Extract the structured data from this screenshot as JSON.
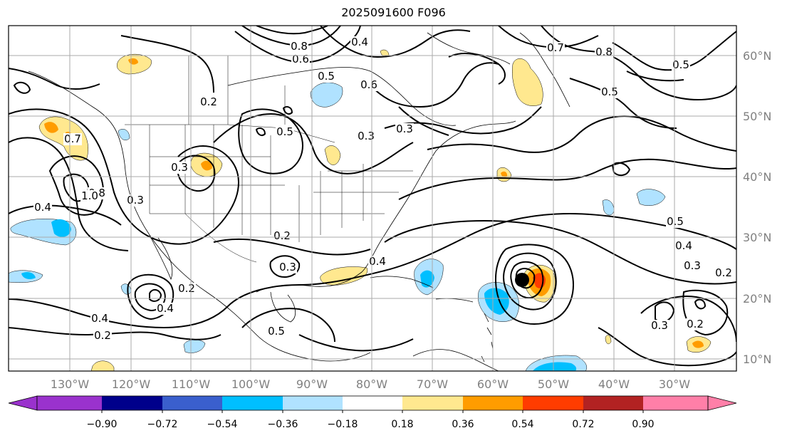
{
  "title": "2025091600 F096",
  "map": {
    "lon_labels": [
      "130°W",
      "120°W",
      "110°W",
      "100°W",
      "90°W",
      "80°W",
      "70°W",
      "60°W",
      "50°W",
      "40°W",
      "30°W"
    ],
    "lat_labels": [
      "60°N",
      "50°N",
      "40°N",
      "30°N",
      "20°N",
      "10°N"
    ],
    "contour_labels": [
      "0.8",
      "0.6",
      "0.4",
      "0.7",
      "0.8",
      "0.5",
      "0.3",
      "0.2",
      "0.5",
      "0.3",
      "0.7",
      "0.8",
      "1.0",
      "0.3",
      "0.2",
      "0.4",
      "0.4",
      "0.2",
      "0.5",
      "0.4",
      "0.2",
      "0.3",
      "0.4",
      "0.5",
      "0.4",
      "0.5",
      "0.3",
      "0.2",
      "0.3",
      "0.2",
      "0.5",
      "0.6",
      "0.3"
    ],
    "storm_marker": "tropical-cyclone-marker"
  },
  "colorbar": {
    "ticks": [
      "−0.90",
      "−0.72",
      "−0.54",
      "−0.36",
      "−0.18",
      "0.18",
      "0.36",
      "0.54",
      "0.72",
      "0.90"
    ],
    "colors": [
      "#9a32cd",
      "#00008b",
      "#3a5fcd",
      "#00bfff",
      "#b0e2ff",
      "#ffffff",
      "#ffe88f",
      "#ff9c00",
      "#ff3c00",
      "#b22222",
      "#ff7fa8"
    ]
  }
}
